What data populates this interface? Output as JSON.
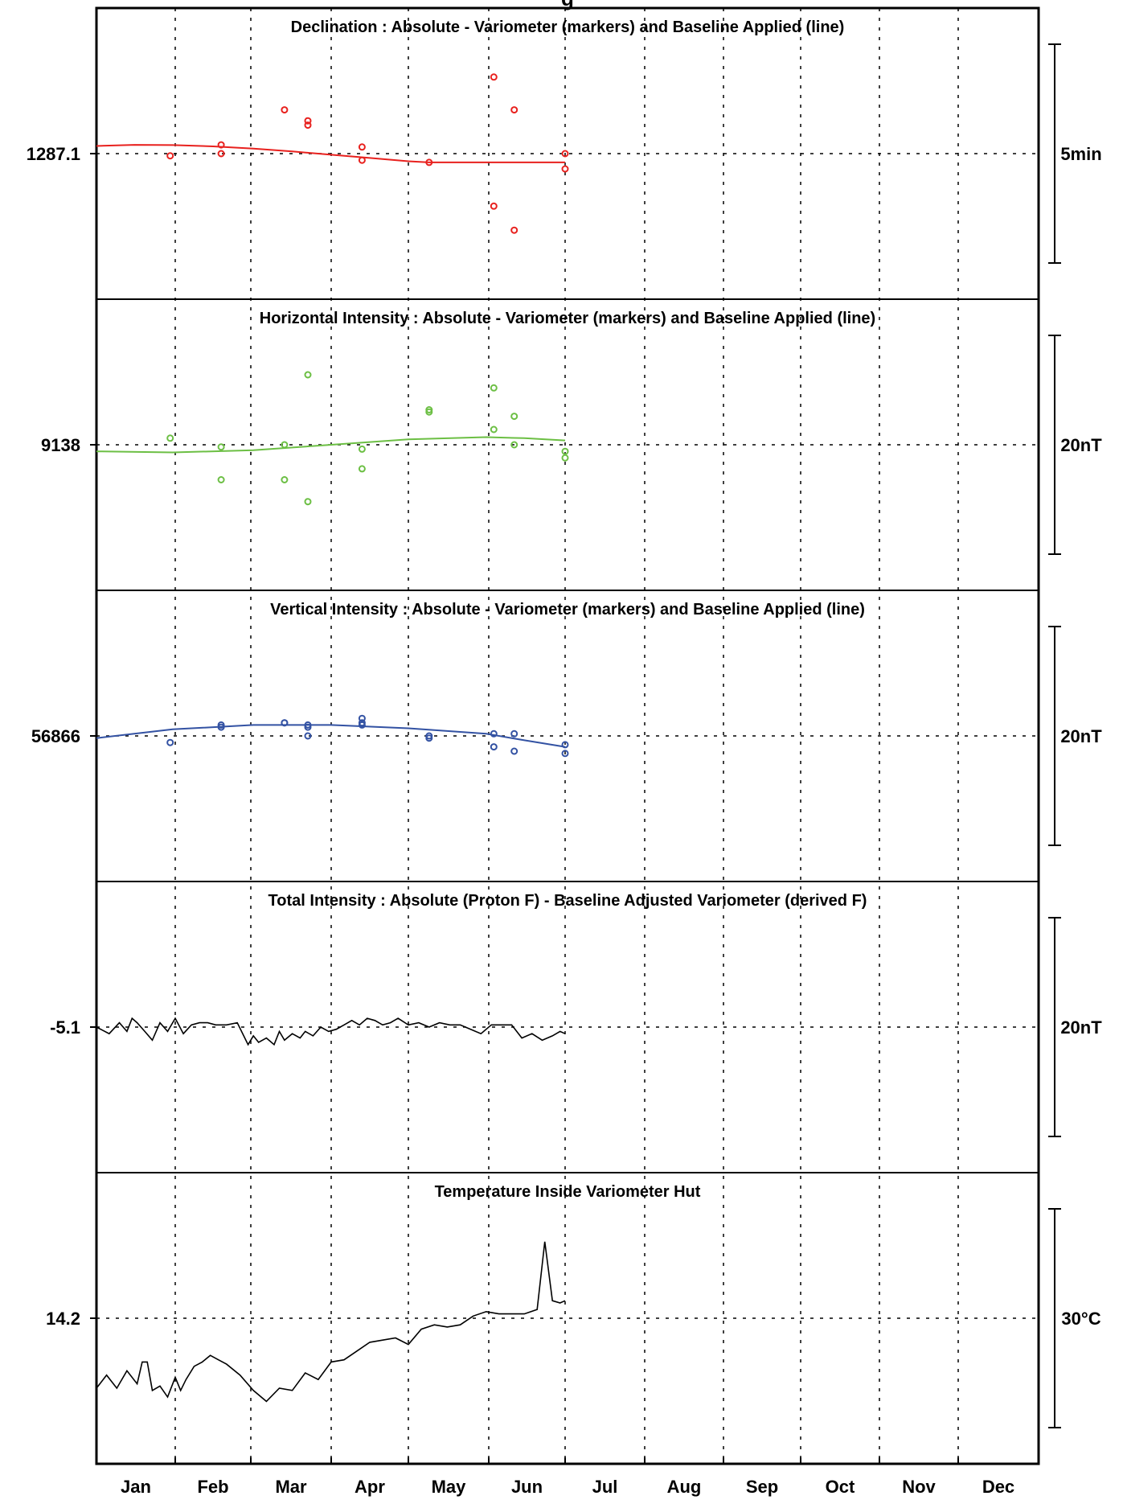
{
  "chart_data": {
    "type": "line",
    "title": "",
    "x_categories": [
      "Jan",
      "Feb",
      "Mar",
      "Apr",
      "May",
      "Jun",
      "Jul",
      "Aug",
      "Sep",
      "Oct",
      "Nov",
      "Dec"
    ],
    "x_range_days": [
      0,
      365
    ],
    "panels": [
      {
        "title": "Declination : Absolute - Variometer (markers) and Baseline Applied (line)",
        "ref_label": "1287.1",
        "scale_label": "5min",
        "scale_value": 5,
        "color": "#e8211e",
        "marker_days": [
          29,
          48,
          48,
          72,
          81,
          81,
          102,
          102,
          128,
          153,
          153,
          161,
          161,
          181,
          181
        ],
        "marker_values": [
          -0.1,
          0.4,
          0,
          2.0,
          1.3,
          1.5,
          0.3,
          -0.3,
          -0.4,
          3.5,
          -2.4,
          2.0,
          -3.5,
          0,
          -0.7
        ],
        "baseline_days": [
          0,
          15,
          30,
          45,
          60,
          75,
          90,
          105,
          120,
          128,
          140,
          155,
          165,
          181
        ],
        "baseline_values": [
          0.35,
          0.4,
          0.39,
          0.33,
          0.23,
          0.1,
          -0.05,
          -0.2,
          -0.35,
          -0.4,
          -0.4,
          -0.4,
          -0.4,
          -0.4
        ]
      },
      {
        "title": "Horizontal Intensity : Absolute - Variometer (markers) and Baseline Applied (line)",
        "ref_label": "9138",
        "scale_label": "20nT",
        "scale_value": 20,
        "color": "#6cbf44",
        "marker_days": [
          29,
          48,
          48,
          72,
          72,
          81,
          81,
          102,
          102,
          128,
          128,
          153,
          153,
          161,
          161,
          181,
          181
        ],
        "marker_values": [
          0.3,
          -0.1,
          -1.6,
          0,
          -1.6,
          3.2,
          -2.6,
          -0.2,
          -1.1,
          1.6,
          1.5,
          2.6,
          0.7,
          1.3,
          0,
          -0.3,
          -0.6
        ],
        "baseline_days": [
          0,
          30,
          60,
          90,
          120,
          150,
          165,
          181
        ],
        "baseline_values": [
          -0.3,
          -0.35,
          -0.25,
          0,
          0.25,
          0.35,
          0.3,
          0.2
        ]
      },
      {
        "title": "Vertical Intensity : Absolute - Variometer (markers) and Baseline Applied (line)",
        "ref_label": "56866",
        "scale_label": "20nT",
        "scale_value": 20,
        "color": "#3352a3",
        "marker_days": [
          29,
          48,
          48,
          72,
          72,
          81,
          81,
          81,
          102,
          102,
          102,
          128,
          128,
          153,
          153,
          161,
          161,
          181,
          181
        ],
        "marker_values": [
          -0.3,
          0.5,
          0.4,
          0.6,
          0.6,
          0.4,
          0,
          0.5,
          0.8,
          0.6,
          0.5,
          -0.1,
          0,
          0.1,
          -0.5,
          0.1,
          -0.7,
          -0.4,
          -0.8
        ],
        "baseline_days": [
          0,
          30,
          60,
          90,
          120,
          150,
          165,
          181
        ],
        "baseline_values": [
          -0.1,
          0.3,
          0.5,
          0.5,
          0.35,
          0.1,
          -0.2,
          -0.5
        ]
      },
      {
        "title": "Total Intensity : Absolute (Proton F) - Baseline Adjusted Variometer (derived F)",
        "ref_label": "-5.1",
        "scale_label": "20nT",
        "scale_value": 20,
        "color": "#000000",
        "line_days": [
          0,
          5,
          9,
          12,
          14,
          16,
          19,
          22,
          25,
          28,
          31,
          34,
          37,
          40,
          43,
          46,
          50,
          54,
          58,
          60,
          62,
          65,
          68,
          70,
          72,
          75,
          78,
          80,
          83,
          86,
          89,
          92,
          95,
          98,
          101,
          104,
          107,
          110,
          113,
          116,
          120,
          124,
          128,
          132,
          136,
          140,
          144,
          148,
          152,
          156,
          160,
          164,
          168,
          172,
          176,
          179,
          181
        ],
        "line_values": [
          0,
          -0.3,
          0.2,
          -0.2,
          0.4,
          0.2,
          -0.2,
          -0.6,
          0.2,
          -0.2,
          0.4,
          -0.3,
          0.1,
          0.2,
          0.2,
          0.1,
          0.1,
          0.2,
          -0.8,
          -0.4,
          -0.7,
          -0.5,
          -0.8,
          -0.2,
          -0.6,
          -0.3,
          -0.5,
          -0.2,
          -0.4,
          0,
          -0.2,
          -0.1,
          0.1,
          0.3,
          0.1,
          0.4,
          0.3,
          0.1,
          0.2,
          0.4,
          0.1,
          0.2,
          0,
          0.2,
          0.1,
          0.1,
          -0.1,
          -0.3,
          0.1,
          0.1,
          0.1,
          -0.5,
          -0.3,
          -0.6,
          -0.4,
          -0.2,
          -0.3
        ]
      },
      {
        "title": "Temperature Inside Variometer Hut",
        "ref_label": "14.2",
        "scale_label": "30°C",
        "scale_value": 30,
        "color": "#000000",
        "line_days": [
          0,
          4,
          8,
          12,
          16,
          18,
          20,
          22,
          25,
          28,
          31,
          33,
          35,
          38,
          41,
          44,
          47,
          50,
          55,
          60,
          65,
          70,
          75,
          80,
          85,
          90,
          95,
          100,
          105,
          110,
          115,
          120,
          125,
          130,
          135,
          140,
          145,
          150,
          155,
          160,
          165,
          170,
          173,
          176,
          179,
          181
        ],
        "line_values": [
          -3.2,
          -2.6,
          -3.2,
          -2.4,
          -3.0,
          -2.0,
          -2.0,
          -3.3,
          -3.1,
          -3.6,
          -2.7,
          -3.3,
          -2.8,
          -2.2,
          -2.0,
          -1.7,
          -1.9,
          -2.1,
          -2.6,
          -3.3,
          -3.8,
          -3.2,
          -3.3,
          -2.5,
          -2.8,
          -2.0,
          -1.9,
          -1.5,
          -1.1,
          -1.0,
          -0.9,
          -1.2,
          -0.5,
          -0.3,
          -0.4,
          -0.3,
          0.1,
          0.3,
          0.2,
          0.2,
          0.2,
          0.4,
          3.5,
          0.8,
          0.7,
          0.8
        ]
      }
    ],
    "grid": true,
    "legend": "none",
    "top_title_fragment": "g"
  }
}
